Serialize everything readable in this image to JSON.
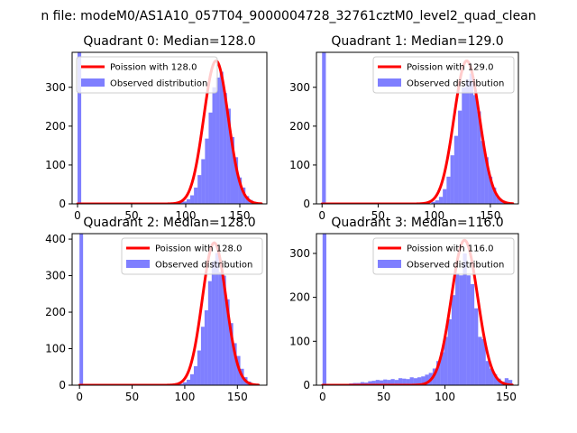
{
  "figure": {
    "suptitle": "n file: modeM0/AS1A10_057T04_9000004728_32761cztM0_level2_quad_clean"
  },
  "colors": {
    "hist": "#0000ff",
    "hist_opacity": 0.5,
    "fit": "#ff0000",
    "frame": "#000000",
    "background": "#ffffff"
  },
  "chart_data": [
    {
      "type": "histogram",
      "title": "Quadrant 0: Median=128.0",
      "median": 128.0,
      "xlim": [
        -5,
        175
      ],
      "ylim": [
        0,
        390
      ],
      "xticks": [
        0,
        50,
        100,
        150
      ],
      "yticks": [
        0,
        100,
        200,
        300
      ],
      "legend": {
        "placement": "upper-left",
        "fit_label": "Poission with 128.0",
        "hist_label": "Observed distribution"
      },
      "bin_width": 3.4,
      "bins": [
        {
          "x": 0,
          "y": 390
        },
        {
          "x": 77,
          "y": 2
        },
        {
          "x": 86,
          "y": 3
        },
        {
          "x": 94,
          "y": 5
        },
        {
          "x": 97.4,
          "y": 6
        },
        {
          "x": 100.8,
          "y": 12
        },
        {
          "x": 104.2,
          "y": 22
        },
        {
          "x": 107.6,
          "y": 42
        },
        {
          "x": 111,
          "y": 74
        },
        {
          "x": 114.4,
          "y": 115
        },
        {
          "x": 117.8,
          "y": 168
        },
        {
          "x": 121.2,
          "y": 235
        },
        {
          "x": 124.6,
          "y": 300
        },
        {
          "x": 128,
          "y": 325
        },
        {
          "x": 131.4,
          "y": 340
        },
        {
          "x": 134.8,
          "y": 285
        },
        {
          "x": 138.2,
          "y": 245
        },
        {
          "x": 141.6,
          "y": 172
        },
        {
          "x": 145,
          "y": 120
        },
        {
          "x": 148.4,
          "y": 68
        },
        {
          "x": 151.8,
          "y": 42
        },
        {
          "x": 155.2,
          "y": 20
        },
        {
          "x": 158.6,
          "y": 10
        },
        {
          "x": 162,
          "y": 5
        },
        {
          "x": 165.4,
          "y": 2
        }
      ],
      "fit": {
        "mu": 128,
        "peak": 368,
        "range": [
          0,
          170
        ]
      }
    },
    {
      "type": "histogram",
      "title": "Quadrant 1: Median=129.0",
      "median": 129.0,
      "xlim": [
        -5,
        175
      ],
      "ylim": [
        0,
        390
      ],
      "xticks": [
        0,
        50,
        100,
        150
      ],
      "yticks": [
        0,
        100,
        200,
        300
      ],
      "legend": {
        "placement": "upper-right",
        "fit_label": "Poission with 129.0",
        "hist_label": "Observed distribution"
      },
      "bin_width": 3.4,
      "bins": [
        {
          "x": 0,
          "y": 390
        },
        {
          "x": 82,
          "y": 2
        },
        {
          "x": 90,
          "y": 3
        },
        {
          "x": 97.4,
          "y": 5
        },
        {
          "x": 100.8,
          "y": 9
        },
        {
          "x": 104.2,
          "y": 18
        },
        {
          "x": 107.6,
          "y": 38
        },
        {
          "x": 111,
          "y": 70
        },
        {
          "x": 114.4,
          "y": 125
        },
        {
          "x": 117.8,
          "y": 175
        },
        {
          "x": 121.2,
          "y": 240
        },
        {
          "x": 124.6,
          "y": 300
        },
        {
          "x": 128,
          "y": 320
        },
        {
          "x": 131.4,
          "y": 335
        },
        {
          "x": 134.8,
          "y": 280
        },
        {
          "x": 138.2,
          "y": 238
        },
        {
          "x": 141.6,
          "y": 162
        },
        {
          "x": 145,
          "y": 120
        },
        {
          "x": 148.4,
          "y": 70
        },
        {
          "x": 151.8,
          "y": 42
        },
        {
          "x": 155.2,
          "y": 18
        },
        {
          "x": 158.6,
          "y": 8
        },
        {
          "x": 162,
          "y": 3
        }
      ],
      "fit": {
        "mu": 129,
        "peak": 368,
        "range": [
          0,
          170
        ]
      }
    },
    {
      "type": "histogram",
      "title": "Quadrant 2: Median=128.0",
      "median": 128.0,
      "xlim": [
        -7,
        178
      ],
      "ylim": [
        0,
        415
      ],
      "xticks": [
        0,
        50,
        100,
        150
      ],
      "yticks": [
        0,
        100,
        200,
        300,
        400
      ],
      "legend": {
        "placement": "upper-right",
        "fit_label": "Poission with 128.0",
        "hist_label": "Observed distribution"
      },
      "bin_width": 3.4,
      "bins": [
        {
          "x": 0,
          "y": 415
        },
        {
          "x": 71,
          "y": 2
        },
        {
          "x": 80,
          "y": 3
        },
        {
          "x": 88,
          "y": 3
        },
        {
          "x": 95,
          "y": 4
        },
        {
          "x": 98.4,
          "y": 8
        },
        {
          "x": 101.8,
          "y": 15
        },
        {
          "x": 105.2,
          "y": 30
        },
        {
          "x": 108.6,
          "y": 52
        },
        {
          "x": 112,
          "y": 95
        },
        {
          "x": 115.4,
          "y": 160
        },
        {
          "x": 118.8,
          "y": 205
        },
        {
          "x": 122.2,
          "y": 285
        },
        {
          "x": 125.6,
          "y": 340
        },
        {
          "x": 129,
          "y": 362
        },
        {
          "x": 132.4,
          "y": 310
        },
        {
          "x": 135.8,
          "y": 300
        },
        {
          "x": 139.2,
          "y": 235
        },
        {
          "x": 142.6,
          "y": 170
        },
        {
          "x": 146,
          "y": 115
        },
        {
          "x": 149.4,
          "y": 80
        },
        {
          "x": 152.8,
          "y": 45
        },
        {
          "x": 156.2,
          "y": 22
        },
        {
          "x": 159.6,
          "y": 10
        },
        {
          "x": 163,
          "y": 4
        }
      ],
      "fit": {
        "mu": 128,
        "peak": 390,
        "range": [
          0,
          170
        ]
      }
    },
    {
      "type": "histogram",
      "title": "Quadrant 3: Median=116.0",
      "median": 116.0,
      "xlim": [
        -5,
        160
      ],
      "ylim": [
        0,
        345
      ],
      "xticks": [
        0,
        50,
        100,
        150
      ],
      "yticks": [
        0,
        100,
        200,
        300
      ],
      "legend": {
        "placement": "upper-right",
        "fit_label": "Poission with 116.0",
        "hist_label": "Observed distribution"
      },
      "bin_width": 3.1,
      "bins": [
        {
          "x": 0,
          "y": 345
        },
        {
          "x": 3.1,
          "y": 2
        },
        {
          "x": 6.2,
          "y": 2
        },
        {
          "x": 9.3,
          "y": 3
        },
        {
          "x": 12.4,
          "y": 2
        },
        {
          "x": 15.5,
          "y": 3
        },
        {
          "x": 18.6,
          "y": 3
        },
        {
          "x": 21.7,
          "y": 4
        },
        {
          "x": 24.8,
          "y": 5
        },
        {
          "x": 27.9,
          "y": 5
        },
        {
          "x": 31,
          "y": 7
        },
        {
          "x": 34.1,
          "y": 6
        },
        {
          "x": 37.2,
          "y": 9
        },
        {
          "x": 40.3,
          "y": 10
        },
        {
          "x": 43.4,
          "y": 12
        },
        {
          "x": 46.5,
          "y": 11
        },
        {
          "x": 49.6,
          "y": 13
        },
        {
          "x": 52.7,
          "y": 12
        },
        {
          "x": 55.8,
          "y": 14
        },
        {
          "x": 58.9,
          "y": 12
        },
        {
          "x": 62,
          "y": 16
        },
        {
          "x": 65.1,
          "y": 15
        },
        {
          "x": 68.2,
          "y": 14
        },
        {
          "x": 71.3,
          "y": 18
        },
        {
          "x": 74.4,
          "y": 16
        },
        {
          "x": 77.5,
          "y": 18
        },
        {
          "x": 80.6,
          "y": 20
        },
        {
          "x": 83.7,
          "y": 24
        },
        {
          "x": 86.8,
          "y": 28
        },
        {
          "x": 89.9,
          "y": 38
        },
        {
          "x": 93,
          "y": 55
        },
        {
          "x": 96.1,
          "y": 75
        },
        {
          "x": 99.2,
          "y": 110
        },
        {
          "x": 102.3,
          "y": 150
        },
        {
          "x": 105.4,
          "y": 205
        },
        {
          "x": 108.5,
          "y": 255
        },
        {
          "x": 111.6,
          "y": 250
        },
        {
          "x": 114.7,
          "y": 300
        },
        {
          "x": 117.8,
          "y": 250
        },
        {
          "x": 120.9,
          "y": 230
        },
        {
          "x": 124,
          "y": 175
        },
        {
          "x": 127.1,
          "y": 110
        },
        {
          "x": 130.2,
          "y": 105
        },
        {
          "x": 133.3,
          "y": 55
        },
        {
          "x": 136.4,
          "y": 38
        },
        {
          "x": 139.5,
          "y": 25
        },
        {
          "x": 142.6,
          "y": 15
        },
        {
          "x": 145.7,
          "y": 8
        },
        {
          "x": 148.8,
          "y": 16
        },
        {
          "x": 151.9,
          "y": 12
        }
      ],
      "fit": {
        "mu": 116,
        "peak": 330,
        "range": [
          0,
          155
        ]
      }
    }
  ]
}
